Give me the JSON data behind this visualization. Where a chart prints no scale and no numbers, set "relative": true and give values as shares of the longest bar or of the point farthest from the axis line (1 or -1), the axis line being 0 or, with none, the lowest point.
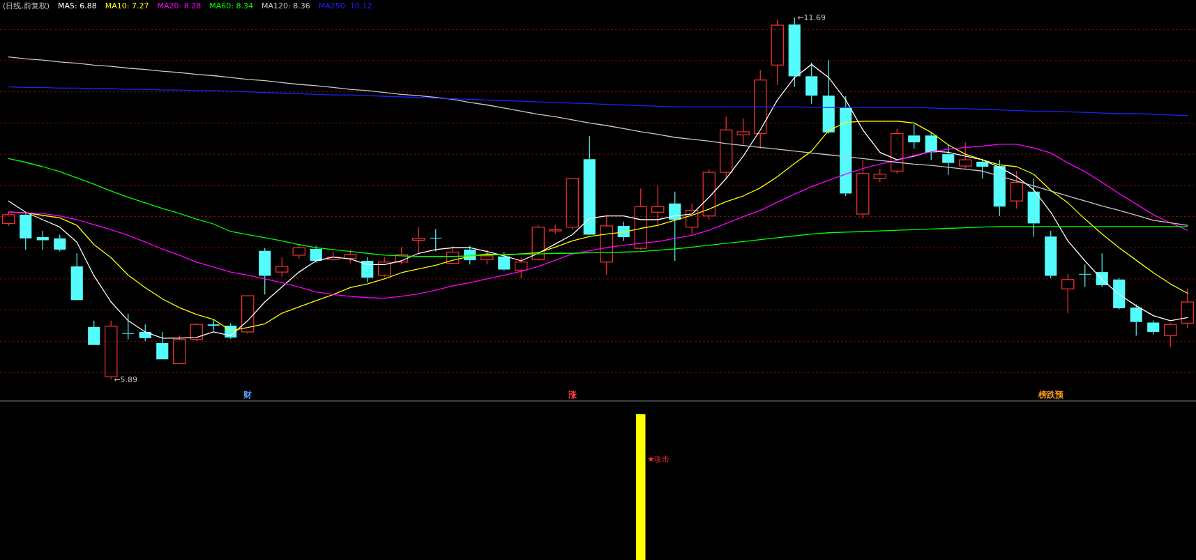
{
  "chart_data": [
    {
      "type": "candlestick",
      "title": "(日线,前复权)",
      "legend": "top left",
      "grid": "y",
      "categories": [
        null,
        null,
        null,
        null,
        null,
        null,
        null,
        null,
        null,
        null,
        null,
        null,
        null,
        null,
        null,
        null,
        null,
        null,
        null,
        null,
        null,
        null,
        null,
        null,
        null,
        null,
        null,
        null,
        null,
        null,
        null,
        null,
        null,
        null,
        null,
        null,
        null,
        null,
        null,
        null,
        null,
        null,
        null,
        null,
        null,
        null,
        null,
        null,
        null,
        null,
        null,
        null,
        null,
        null,
        null,
        null,
        null,
        null,
        null,
        null,
        null,
        null,
        null,
        null,
        null,
        null,
        null,
        null,
        null,
        null
      ],
      "yticks": [
        {
          "value": 6,
          "label": null
        },
        {
          "value": 6.5,
          "label": null
        },
        {
          "value": 7,
          "label": null
        },
        {
          "value": 7.5,
          "label": null
        },
        {
          "value": 8,
          "label": null
        },
        {
          "value": 8.5,
          "label": null
        },
        {
          "value": 9,
          "label": null
        },
        {
          "value": 9.5,
          "label": null
        },
        {
          "value": 10,
          "label": null
        },
        {
          "value": 10.5,
          "label": null
        },
        {
          "value": 11,
          "label": null
        },
        {
          "value": 11.5,
          "label": null
        }
      ],
      "ohlc": [
        [
          8.39,
          8.57,
          8.35,
          8.53
        ],
        [
          8.53,
          8.57,
          7.97,
          8.15
        ],
        [
          8.17,
          8.27,
          7.97,
          8.12
        ],
        [
          8.15,
          8.21,
          7.94,
          7.97
        ],
        [
          7.7,
          7.91,
          7.16,
          7.16
        ],
        [
          6.73,
          6.83,
          6.44,
          6.44
        ],
        [
          5.93,
          6.83,
          5.89,
          6.74
        ],
        [
          6.63,
          6.94,
          6.53,
          6.62
        ],
        [
          6.65,
          6.77,
          6.5,
          6.55
        ],
        [
          6.47,
          6.65,
          6.21,
          6.21
        ],
        [
          6.14,
          6.59,
          6.14,
          6.53
        ],
        [
          6.53,
          6.79,
          6.5,
          6.77
        ],
        [
          6.77,
          6.84,
          6.67,
          6.75
        ],
        [
          6.75,
          6.79,
          6.54,
          6.56
        ],
        [
          6.65,
          7.23,
          6.62,
          7.23
        ],
        [
          7.95,
          7.99,
          7.25,
          7.55
        ],
        [
          7.61,
          7.85,
          7.53,
          7.7
        ],
        [
          7.88,
          8.06,
          7.82,
          8.0
        ],
        [
          7.98,
          8.03,
          7.76,
          7.79
        ],
        [
          7.81,
          7.94,
          7.79,
          7.85
        ],
        [
          7.83,
          7.97,
          7.75,
          7.89
        ],
        [
          7.79,
          7.85,
          7.45,
          7.52
        ],
        [
          7.56,
          7.85,
          7.53,
          7.77
        ],
        [
          7.77,
          8.01,
          7.73,
          7.89
        ],
        [
          8.12,
          8.33,
          7.91,
          8.15
        ],
        [
          8.16,
          8.3,
          7.94,
          8.15
        ],
        [
          7.75,
          8.03,
          7.73,
          7.93
        ],
        [
          7.97,
          8.03,
          7.73,
          7.8
        ],
        [
          7.81,
          7.97,
          7.73,
          7.87
        ],
        [
          7.86,
          7.93,
          7.63,
          7.65
        ],
        [
          7.64,
          7.85,
          7.51,
          7.77
        ],
        [
          7.81,
          8.37,
          7.79,
          8.33
        ],
        [
          8.27,
          8.37,
          8.23,
          8.29
        ],
        [
          8.33,
          9.12,
          8.3,
          9.11
        ],
        [
          9.42,
          9.79,
          8.21,
          8.21
        ],
        [
          7.77,
          8.51,
          7.57,
          8.35
        ],
        [
          8.35,
          8.42,
          8.11,
          8.17
        ],
        [
          7.99,
          8.95,
          7.97,
          8.66
        ],
        [
          8.57,
          8.99,
          8.33,
          8.66
        ],
        [
          8.71,
          8.9,
          7.79,
          8.45
        ],
        [
          8.33,
          8.71,
          8.21,
          8.6
        ],
        [
          8.51,
          9.26,
          8.45,
          9.21
        ],
        [
          9.21,
          10.1,
          9.11,
          9.89
        ],
        [
          9.81,
          10.07,
          9.65,
          9.86
        ],
        [
          9.83,
          10.85,
          9.59,
          10.69
        ],
        [
          10.93,
          11.66,
          10.61,
          11.57
        ],
        [
          11.58,
          11.69,
          10.58,
          10.75
        ],
        [
          10.75,
          10.97,
          10.31,
          10.44
        ],
        [
          10.44,
          11.01,
          9.83,
          9.85
        ],
        [
          10.25,
          10.43,
          8.83,
          8.87
        ],
        [
          8.54,
          9.41,
          8.47,
          9.19
        ],
        [
          9.11,
          9.26,
          9.05,
          9.18
        ],
        [
          9.23,
          9.91,
          9.19,
          9.83
        ],
        [
          9.8,
          9.98,
          9.59,
          9.69
        ],
        [
          9.8,
          9.86,
          9.41,
          9.53
        ],
        [
          9.5,
          9.65,
          9.17,
          9.36
        ],
        [
          9.31,
          9.69,
          9.26,
          9.41
        ],
        [
          9.38,
          9.43,
          9.11,
          9.3
        ],
        [
          9.31,
          9.41,
          8.51,
          8.66
        ],
        [
          8.75,
          9.23,
          8.63,
          9.05
        ],
        [
          8.9,
          9.11,
          8.18,
          8.39
        ],
        [
          8.18,
          8.27,
          7.51,
          7.55
        ],
        [
          7.34,
          7.58,
          6.95,
          7.49
        ],
        [
          7.58,
          7.73,
          7.37,
          7.57
        ],
        [
          7.61,
          7.91,
          7.37,
          7.4
        ],
        [
          7.49,
          7.51,
          7.01,
          7.03
        ],
        [
          7.04,
          7.09,
          6.59,
          6.81
        ],
        [
          6.8,
          6.83,
          6.61,
          6.65
        ],
        [
          6.59,
          6.79,
          6.41,
          6.77
        ],
        [
          6.79,
          7.34,
          6.71,
          7.13
        ]
      ],
      "colors": [
        "#ff3232",
        "#54fcfc",
        "#54fcfc",
        "#54fcfc",
        "#54fcfc",
        "#54fcfc",
        "#ff3232",
        "#54fcfc",
        "#54fcfc",
        "#54fcfc",
        "#ff3232",
        "#ff3232",
        "#54fcfc",
        "#54fcfc",
        "#ff3232",
        "#54fcfc",
        "#ff3232",
        "#ff3232",
        "#54fcfc",
        "#ff3232",
        "#ff3232",
        "#54fcfc",
        "#ff3232",
        "#ff3232",
        "#ff3232",
        "#54fcfc",
        "#ff3232",
        "#54fcfc",
        "#ff3232",
        "#54fcfc",
        "#ff3232",
        "#ff3232",
        "#ff3232",
        "#ff3232",
        "#54fcfc",
        "#ff3232",
        "#54fcfc",
        "#ff3232",
        "#ff3232",
        "#54fcfc",
        "#ff3232",
        "#ff3232",
        "#ff3232",
        "#ff3232",
        "#ff3232",
        "#ff3232",
        "#54fcfc",
        "#54fcfc",
        "#54fcfc",
        "#54fcfc",
        "#ff3232",
        "#ff3232",
        "#ff3232",
        "#54fcfc",
        "#54fcfc",
        "#54fcfc",
        "#ff3232",
        "#54fcfc",
        "#54fcfc",
        "#ff3232",
        "#54fcfc",
        "#54fcfc",
        "#ff3232",
        "#54fcfc",
        "#54fcfc",
        "#54fcfc",
        "#54fcfc",
        "#54fcfc",
        "#ff3232",
        "#ff3232"
      ],
      "series": [
        {
          "name": "MA5: 6.88",
          "type": "line",
          "color": "#ffffff",
          "values": [
            8.75,
            8.57,
            8.45,
            8.33,
            8.09,
            7.55,
            7.13,
            6.83,
            6.65,
            6.55,
            6.55,
            6.56,
            6.65,
            6.59,
            6.83,
            7.13,
            7.37,
            7.61,
            7.79,
            7.85,
            7.82,
            7.73,
            7.73,
            7.79,
            7.91,
            7.97,
            8.0,
            8.0,
            7.94,
            7.87,
            7.79,
            7.91,
            8.06,
            8.21,
            8.47,
            8.51,
            8.51,
            8.45,
            8.45,
            8.51,
            8.54,
            8.81,
            9.11,
            9.47,
            9.89,
            10.37,
            10.73,
            10.94,
            10.73,
            10.37,
            9.89,
            9.53,
            9.41,
            9.47,
            9.55,
            9.53,
            9.47,
            9.41,
            9.29,
            9.14,
            8.93,
            8.57,
            8.11,
            7.79,
            7.49,
            7.25,
            7.07,
            6.91,
            6.83,
            6.88
          ]
        },
        {
          "name": "MA10: 7.27",
          "type": "line",
          "color": "#ffff00",
          "values": [
            8.57,
            8.56,
            8.52,
            8.48,
            8.36,
            8.05,
            7.84,
            7.56,
            7.36,
            7.18,
            7.04,
            6.93,
            6.85,
            6.67,
            6.72,
            6.78,
            6.95,
            7.05,
            7.15,
            7.25,
            7.36,
            7.42,
            7.5,
            7.6,
            7.66,
            7.72,
            7.8,
            7.86,
            7.9,
            7.88,
            7.9,
            7.92,
            8.01,
            8.11,
            8.18,
            8.22,
            8.25,
            8.31,
            8.36,
            8.44,
            8.52,
            8.62,
            8.74,
            8.83,
            8.96,
            9.14,
            9.35,
            9.55,
            9.88,
            10.01,
            10.03,
            10.03,
            10.03,
            10.0,
            9.85,
            9.65,
            9.5,
            9.41,
            9.33,
            9.3,
            9.18,
            8.92,
            8.72,
            8.46,
            8.22,
            8.0,
            7.8,
            7.6,
            7.42,
            7.27
          ]
        },
        {
          "name": "MA20: 8.28",
          "type": "line",
          "color": "#ff00ff",
          "values": [
            8.57,
            8.56,
            8.55,
            8.51,
            8.45,
            8.37,
            8.29,
            8.2,
            8.09,
            7.98,
            7.88,
            7.77,
            7.69,
            7.61,
            7.56,
            7.5,
            7.44,
            7.37,
            7.29,
            7.25,
            7.22,
            7.2,
            7.19,
            7.22,
            7.26,
            7.32,
            7.39,
            7.44,
            7.5,
            7.56,
            7.62,
            7.7,
            7.8,
            7.9,
            7.95,
            8.0,
            8.04,
            8.07,
            8.1,
            8.15,
            8.2,
            8.28,
            8.39,
            8.5,
            8.6,
            8.73,
            8.86,
            8.98,
            9.08,
            9.18,
            9.27,
            9.34,
            9.4,
            9.48,
            9.54,
            9.58,
            9.61,
            9.63,
            9.66,
            9.66,
            9.6,
            9.52,
            9.36,
            9.22,
            9.05,
            8.87,
            8.7,
            8.53,
            8.4,
            8.28
          ]
        },
        {
          "name": "MA60: 8.34",
          "type": "line",
          "color": "#00ff00",
          "values": [
            9.43,
            9.37,
            9.3,
            9.22,
            9.12,
            9.02,
            8.91,
            8.81,
            8.72,
            8.63,
            8.55,
            8.46,
            8.38,
            8.26,
            8.21,
            8.16,
            8.11,
            8.05,
            8.0,
            7.97,
            7.94,
            7.91,
            7.88,
            7.87,
            7.86,
            7.86,
            7.86,
            7.87,
            7.88,
            7.89,
            7.9,
            7.9,
            7.91,
            7.91,
            7.92,
            7.92,
            7.93,
            7.94,
            7.96,
            7.98,
            8.01,
            8.04,
            8.07,
            8.1,
            8.13,
            8.16,
            8.19,
            8.22,
            8.24,
            8.25,
            8.26,
            8.27,
            8.28,
            8.29,
            8.3,
            8.31,
            8.32,
            8.33,
            8.34,
            8.34,
            8.34,
            8.34,
            8.34,
            8.34,
            8.34,
            8.34,
            8.34,
            8.34,
            8.34,
            8.34
          ]
        },
        {
          "name": "MA120: 8.36",
          "type": "line",
          "color": "#c8c8c8",
          "values": [
            11.06,
            11.03,
            11.01,
            10.98,
            10.96,
            10.93,
            10.91,
            10.88,
            10.86,
            10.83,
            10.81,
            10.78,
            10.76,
            10.73,
            10.7,
            10.68,
            10.65,
            10.62,
            10.6,
            10.57,
            10.54,
            10.52,
            10.49,
            10.46,
            10.44,
            10.41,
            10.38,
            10.33,
            10.29,
            10.24,
            10.19,
            10.14,
            10.1,
            10.05,
            10.0,
            9.96,
            9.91,
            9.86,
            9.82,
            9.77,
            9.74,
            9.71,
            9.67,
            9.64,
            9.61,
            9.58,
            9.55,
            9.52,
            9.49,
            9.46,
            9.43,
            9.4,
            9.37,
            9.34,
            9.32,
            9.29,
            9.26,
            9.23,
            9.15,
            9.07,
            8.99,
            8.91,
            8.83,
            8.75,
            8.67,
            8.6,
            8.52,
            8.44,
            8.4,
            8.36
          ]
        },
        {
          "name": "MA250: 10.12",
          "type": "line",
          "color": "#2020ff",
          "values": [
            10.58,
            10.57,
            10.57,
            10.56,
            10.56,
            10.55,
            10.55,
            10.54,
            10.54,
            10.53,
            10.53,
            10.52,
            10.52,
            10.51,
            10.5,
            10.49,
            10.48,
            10.47,
            10.46,
            10.45,
            10.45,
            10.44,
            10.43,
            10.42,
            10.41,
            10.4,
            10.39,
            10.38,
            10.37,
            10.36,
            10.35,
            10.34,
            10.33,
            10.32,
            10.31,
            10.3,
            10.29,
            10.28,
            10.27,
            10.26,
            10.26,
            10.26,
            10.26,
            10.26,
            10.26,
            10.26,
            10.26,
            10.25,
            10.25,
            10.25,
            10.25,
            10.25,
            10.25,
            10.25,
            10.24,
            10.23,
            10.23,
            10.22,
            10.21,
            10.2,
            10.19,
            10.19,
            10.18,
            10.17,
            10.16,
            10.15,
            10.15,
            10.14,
            10.13,
            10.12
          ]
        }
      ],
      "annotations": [
        "←11.69",
        "←5.89",
        "财",
        "涨",
        "榜跌预"
      ]
    },
    {
      "type": "bar",
      "relative": true,
      "color": "#ffff00",
      "categories": [
        null,
        null,
        null,
        null,
        null,
        null,
        null,
        null,
        null,
        null,
        null,
        null,
        null,
        null,
        null,
        null,
        null,
        null,
        null,
        null,
        null,
        null,
        null,
        null,
        null,
        null,
        null,
        null,
        null,
        null,
        null,
        null,
        null,
        null,
        null,
        null,
        null,
        null,
        null,
        null,
        null,
        null,
        null,
        null,
        null,
        null,
        null,
        null,
        null,
        null,
        null,
        null,
        null,
        null,
        null,
        null,
        null,
        null,
        null,
        null,
        null,
        null,
        null,
        null,
        null,
        null,
        null,
        null,
        null,
        null
      ],
      "values": [
        null,
        null,
        null,
        null,
        null,
        null,
        null,
        null,
        null,
        null,
        null,
        null,
        null,
        null,
        null,
        null,
        null,
        null,
        null,
        null,
        null,
        null,
        null,
        null,
        null,
        null,
        null,
        null,
        null,
        null,
        null,
        null,
        null,
        null,
        null,
        null,
        null,
        1,
        null,
        null,
        null,
        null,
        null,
        null,
        null,
        null,
        null,
        null,
        null,
        null,
        null,
        null,
        null,
        null,
        null,
        null,
        null,
        null,
        null,
        null,
        null,
        null,
        null,
        null,
        null,
        null,
        null,
        null,
        null,
        null
      ],
      "annotations": [
        "★攻击"
      ]
    }
  ]
}
